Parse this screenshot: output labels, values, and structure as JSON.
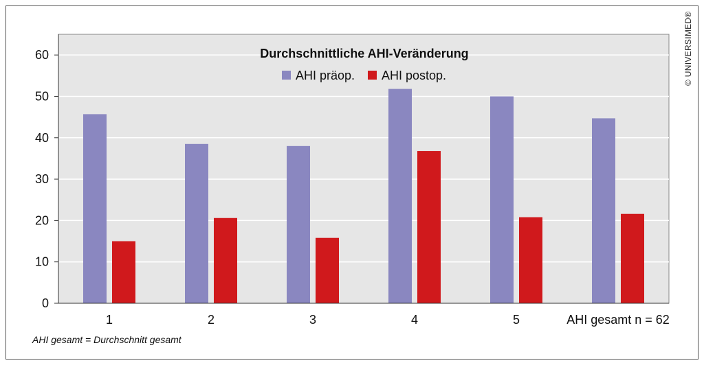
{
  "footnote": "AHI gesamt = Durchschnitt gesamt",
  "copyright": "© UNIVERSIMED®",
  "colors": {
    "pre": "#8a87c0",
    "post": "#d0191c",
    "plot_bg": "#e6e6e6",
    "grid": "#ffffff"
  },
  "chart_data": {
    "type": "bar",
    "title": "Durchschnittliche AHI-Veränderung",
    "categories": [
      "1",
      "2",
      "3",
      "4",
      "5",
      "AHI gesamt n = 62"
    ],
    "series": [
      {
        "name": "AHI präop.",
        "values": [
          45.7,
          38.5,
          38.0,
          51.8,
          50.0,
          44.7
        ]
      },
      {
        "name": "AHI postop.",
        "values": [
          15.0,
          20.6,
          15.8,
          36.8,
          20.8,
          21.6
        ]
      }
    ],
    "xlabel": "",
    "ylabel": "",
    "ylim": [
      0,
      65
    ],
    "yticks": [
      0,
      10,
      20,
      30,
      40,
      50,
      60
    ],
    "grid": true,
    "legend": "top-center"
  }
}
